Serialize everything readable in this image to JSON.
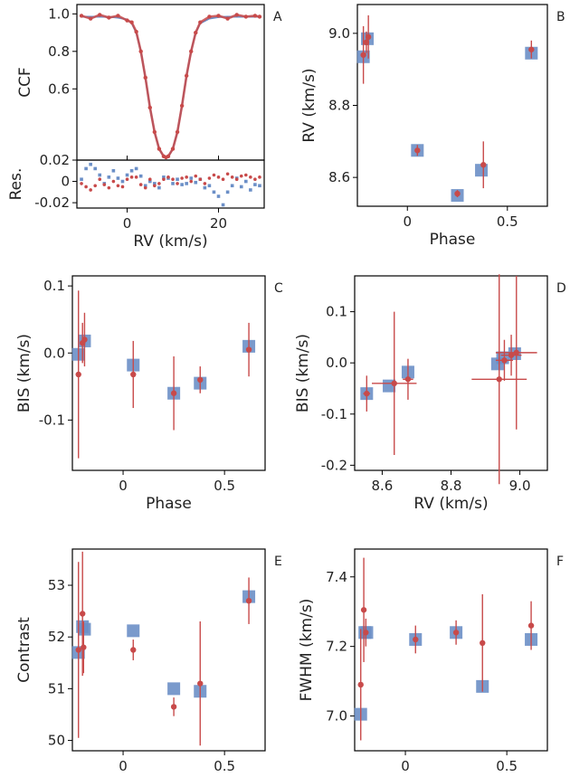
{
  "colors": {
    "blue": "#6b8fc7",
    "red": "#c84a4a",
    "axis": "#000000"
  },
  "chart_data": [
    {
      "panel": "A",
      "type": "line",
      "xlabel": "RV (km/s)",
      "ylabel": "CCF",
      "xlim": [
        -11,
        30
      ],
      "ylim": [
        0.22,
        1.05
      ],
      "xticks": [
        0,
        20
      ],
      "yticks": [
        0.6,
        0.8,
        1.0
      ],
      "yticklabels": [
        "0.6",
        "0.8",
        "1.0"
      ],
      "series": [
        {
          "color": "#6b8fc7",
          "x": [
            -10,
            -8,
            -6,
            -4,
            -2,
            0,
            1,
            2,
            3,
            4,
            5,
            6,
            7,
            8,
            8.5,
            9,
            10,
            11,
            12,
            13,
            14,
            15,
            16,
            18,
            20,
            22,
            24,
            26,
            28,
            29
          ],
          "y": [
            0.985,
            0.985,
            0.985,
            0.984,
            0.98,
            0.97,
            0.95,
            0.9,
            0.8,
            0.66,
            0.5,
            0.37,
            0.28,
            0.24,
            0.235,
            0.24,
            0.28,
            0.37,
            0.51,
            0.67,
            0.8,
            0.9,
            0.95,
            0.975,
            0.983,
            0.985,
            0.985,
            0.985,
            0.985,
            0.985
          ]
        },
        {
          "color": "#c84a4a",
          "x": [
            -10,
            -8,
            -6,
            -4,
            -2,
            0,
            1,
            2,
            3,
            4,
            5,
            6,
            7,
            8,
            8.5,
            9,
            10,
            11,
            12,
            13,
            14,
            15,
            16,
            18,
            20,
            22,
            24,
            26,
            28,
            29
          ],
          "y": [
            0.99,
            0.975,
            0.995,
            0.98,
            0.99,
            0.965,
            0.955,
            0.905,
            0.8,
            0.66,
            0.5,
            0.37,
            0.28,
            0.24,
            0.235,
            0.24,
            0.28,
            0.37,
            0.51,
            0.67,
            0.8,
            0.9,
            0.955,
            0.985,
            0.99,
            0.975,
            0.995,
            0.985,
            0.99,
            0.985
          ]
        }
      ]
    },
    {
      "panel": "A-residuals",
      "type": "scatter",
      "ylabel": "Res.",
      "xlim": [
        -11,
        30
      ],
      "ylim": [
        -0.025,
        0.02
      ],
      "yticks": [
        -0.02,
        0,
        0.02
      ],
      "yticklabels": [
        "-0.02",
        "0",
        "0.02"
      ],
      "series": [
        {
          "color": "#6b8fc7",
          "x": [
            -10,
            -9,
            -8,
            -7,
            -6,
            -5,
            -4,
            -3,
            -2,
            -1,
            0,
            1,
            2,
            3,
            4,
            5,
            6,
            7,
            8,
            9,
            10,
            11,
            12,
            13,
            14,
            15,
            16,
            17,
            18,
            19,
            20,
            21,
            22,
            23,
            24,
            25,
            26,
            27,
            28,
            29
          ],
          "y": [
            0.002,
            0.012,
            0.016,
            0.012,
            0.006,
            -0.002,
            0.004,
            0.01,
            0.003,
            0.0,
            0.006,
            0.01,
            0.012,
            0.005,
            -0.004,
            0.0,
            -0.002,
            -0.006,
            0.004,
            0.003,
            -0.002,
            0.002,
            -0.003,
            -0.002,
            0.003,
            -0.001,
            0.002,
            -0.006,
            -0.004,
            -0.01,
            -0.014,
            -0.022,
            -0.01,
            -0.004,
            0.003,
            -0.005,
            0.0,
            -0.008,
            -0.003,
            -0.004
          ]
        },
        {
          "color": "#c84a4a",
          "x": [
            -10,
            -9,
            -8,
            -7,
            -6,
            -5,
            -4,
            -3,
            -2,
            -1,
            0,
            1,
            2,
            3,
            4,
            5,
            6,
            7,
            8,
            9,
            10,
            11,
            12,
            13,
            14,
            15,
            16,
            17,
            18,
            19,
            20,
            21,
            22,
            23,
            24,
            25,
            26,
            27,
            28,
            29
          ],
          "y": [
            -0.002,
            -0.005,
            -0.008,
            -0.004,
            0.002,
            -0.003,
            -0.006,
            0.0,
            -0.004,
            -0.005,
            0.002,
            0.004,
            0.004,
            -0.003,
            -0.006,
            0.002,
            -0.004,
            -0.002,
            0.002,
            0.004,
            0.002,
            -0.002,
            0.003,
            0.004,
            0.0,
            0.005,
            0.002,
            -0.002,
            0.003,
            0.006,
            0.004,
            0.002,
            0.007,
            0.004,
            0.002,
            0.005,
            0.006,
            0.004,
            0.002,
            0.004
          ]
        }
      ]
    },
    {
      "panel": "B",
      "type": "scatter",
      "xlabel": "Phase",
      "ylabel": "RV (km/s)",
      "xlim": [
        -0.25,
        0.7
      ],
      "ylim": [
        8.52,
        9.08
      ],
      "xticks": [
        0,
        0.5
      ],
      "yticks": [
        8.6,
        8.8,
        9.0
      ],
      "yticklabels": [
        "8.6",
        "8.8",
        "9.0"
      ],
      "blue": {
        "x": [
          -0.22,
          -0.2,
          0.05,
          0.25,
          0.37,
          0.62
        ],
        "y": [
          8.935,
          8.985,
          8.675,
          8.55,
          8.62,
          8.945
        ]
      },
      "red": {
        "x": [
          -0.22,
          -0.205,
          -0.195,
          0.05,
          0.25,
          0.38,
          0.62
        ],
        "y": [
          8.94,
          8.975,
          8.99,
          8.675,
          8.555,
          8.635,
          8.955
        ],
        "err": [
          0.08,
          0.03,
          0.06,
          0.015,
          0.01,
          0.065,
          0.025
        ]
      }
    },
    {
      "panel": "C",
      "type": "scatter",
      "xlabel": "Phase",
      "ylabel": "BIS (km/s)",
      "xlim": [
        -0.25,
        0.7
      ],
      "ylim": [
        -0.175,
        0.115
      ],
      "xticks": [
        0,
        0.5
      ],
      "yticks": [
        -0.1,
        0.0,
        0.1
      ],
      "yticklabels": [
        "-0.1",
        "0.0",
        "0.1"
      ],
      "blue": {
        "x": [
          -0.22,
          -0.19,
          0.05,
          0.25,
          0.38,
          0.62
        ],
        "y": [
          -0.002,
          0.018,
          -0.018,
          -0.06,
          -0.045,
          0.01
        ]
      },
      "red": {
        "x": [
          -0.22,
          -0.2,
          -0.19,
          0.05,
          0.25,
          0.38,
          0.62
        ],
        "y": [
          -0.032,
          0.015,
          0.02,
          -0.032,
          -0.06,
          -0.04,
          0.005
        ],
        "err": [
          0.125,
          0.03,
          0.04,
          0.05,
          0.055,
          0.02,
          0.04
        ]
      }
    },
    {
      "panel": "D",
      "type": "scatter",
      "xlabel": "RV (km/s)",
      "ylabel": "BIS (km/s)",
      "xlim": [
        8.52,
        9.08
      ],
      "ylim": [
        -0.21,
        0.17
      ],
      "xticks": [
        8.6,
        8.8,
        9.0
      ],
      "xticklabels": [
        "8.6",
        "8.8",
        "9.0"
      ],
      "yticks": [
        -0.2,
        -0.1,
        0.0,
        0.1
      ],
      "yticklabels": [
        "-0.2",
        "-0.1",
        "0.0",
        "0.1"
      ],
      "blue": {
        "x": [
          8.555,
          8.62,
          8.675,
          8.935,
          8.95,
          8.985
        ],
        "y": [
          -0.06,
          -0.045,
          -0.018,
          -0.002,
          0.01,
          0.018
        ]
      },
      "red": {
        "x": [
          8.555,
          8.635,
          8.675,
          8.94,
          8.975,
          8.955,
          8.99
        ],
        "y": [
          -0.06,
          -0.04,
          -0.032,
          -0.032,
          0.015,
          0.005,
          0.02
        ],
        "xerr": [
          0.01,
          0.065,
          0.015,
          0.08,
          0.03,
          0.025,
          0.06
        ],
        "yerr": [
          0.035,
          0.14,
          0.04,
          0.205,
          0.04,
          0.04,
          0.15
        ]
      }
    },
    {
      "panel": "E",
      "type": "scatter",
      "xlabel": "Phase",
      "ylabel": "Contrast",
      "xlim": [
        -0.25,
        0.7
      ],
      "ylim": [
        49.8,
        53.7
      ],
      "xticks": [
        0,
        0.5
      ],
      "yticks": [
        50,
        51,
        52,
        53
      ],
      "yticklabels": [
        "50",
        "51",
        "52",
        "53"
      ],
      "blue": {
        "x": [
          -0.22,
          -0.2,
          -0.19,
          0.05,
          0.25,
          0.38,
          0.62
        ],
        "y": [
          51.7,
          52.2,
          52.15,
          52.12,
          51.0,
          50.95,
          52.78
        ]
      },
      "red": {
        "x": [
          -0.22,
          -0.2,
          -0.195,
          0.05,
          0.25,
          0.38,
          0.62
        ],
        "y": [
          51.75,
          52.45,
          51.8,
          51.75,
          50.65,
          51.1,
          52.7
        ],
        "err": [
          1.7,
          1.2,
          0.5,
          0.2,
          0.18,
          1.2,
          0.45
        ]
      }
    },
    {
      "panel": "F",
      "type": "scatter",
      "xlabel": "Phase",
      "ylabel": "FWHM (km/s)",
      "xlim": [
        -0.25,
        0.7
      ],
      "ylim": [
        6.9,
        7.48
      ],
      "xticks": [
        0,
        0.5
      ],
      "yticks": [
        7.0,
        7.2,
        7.4
      ],
      "yticklabels": [
        "7.0",
        "7.2",
        "7.4"
      ],
      "blue": {
        "x": [
          -0.22,
          -0.2,
          -0.19,
          0.05,
          0.25,
          0.38,
          0.62
        ],
        "y": [
          7.005,
          7.24,
          7.24,
          7.22,
          7.24,
          7.085,
          7.22
        ]
      },
      "red": {
        "x": [
          -0.22,
          -0.205,
          -0.195,
          0.05,
          0.25,
          0.38,
          0.62
        ],
        "y": [
          7.09,
          7.305,
          7.24,
          7.22,
          7.24,
          7.21,
          7.26
        ],
        "err": [
          0.16,
          0.15,
          0.04,
          0.04,
          0.035,
          0.14,
          0.07
        ]
      }
    }
  ]
}
